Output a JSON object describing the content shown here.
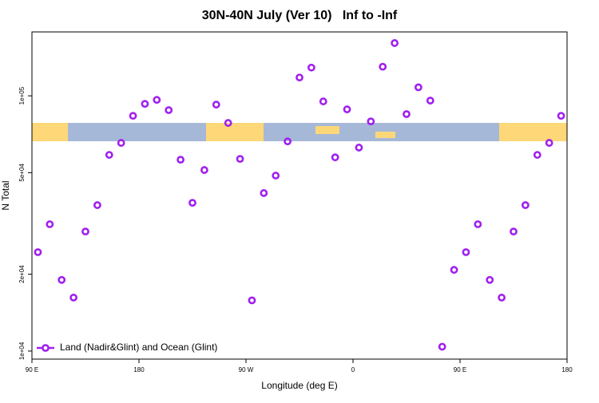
{
  "chart_data": {
    "type": "scatter",
    "title": "30N-40N July (Ver 10)   Inf to -Inf",
    "xlabel": "Longitude (deg E)",
    "ylabel": "N Total",
    "log_y": true,
    "legend": "bottom-left",
    "xlim": [
      90,
      540
    ],
    "xticks": [
      {
        "value": 90,
        "label": "90 E"
      },
      180,
      {
        "value": 270,
        "label": "90 W"
      },
      {
        "value": 360,
        "label": "0"
      },
      {
        "value": 450,
        "label": "90 E"
      },
      {
        "value": 540,
        "label": "180"
      }
    ],
    "ylim": [
      9300,
      178000
    ],
    "yticks": [
      {
        "value": 10000,
        "label": "1e+04"
      },
      {
        "value": 20000,
        "label": "2e+04"
      },
      {
        "value": 50000,
        "label": "5e+04"
      },
      {
        "value": 100000,
        "label": "1e+05"
      }
    ],
    "series": [
      {
        "name": "Land (Nadir&Glint) and Ocean (Glint)",
        "color": "#a020f0",
        "x": [
          95,
          105,
          115,
          125,
          135,
          145,
          155,
          165,
          175,
          185,
          195,
          205,
          215,
          225,
          235,
          245,
          255,
          265,
          275,
          285,
          295,
          305,
          315,
          325,
          335,
          345,
          355,
          365,
          375,
          385,
          395,
          405,
          415,
          425,
          435,
          445,
          455,
          465,
          475,
          485,
          495,
          505,
          515,
          525,
          535
        ],
        "values": [
          24400,
          31400,
          19000,
          16200,
          29400,
          37300,
          58700,
          65400,
          83500,
          93000,
          96400,
          87900,
          56200,
          38100,
          51200,
          92400,
          78300,
          56600,
          15800,
          41600,
          48700,
          66300,
          118000,
          129000,
          95100,
          57400,
          88500,
          62700,
          79400,
          130000,
          161000,
          84800,
          108000,
          95800,
          10400,
          20800,
          24400,
          31400,
          19000,
          16200,
          29400,
          37300,
          58700,
          65400,
          83500
        ]
      }
    ]
  }
}
